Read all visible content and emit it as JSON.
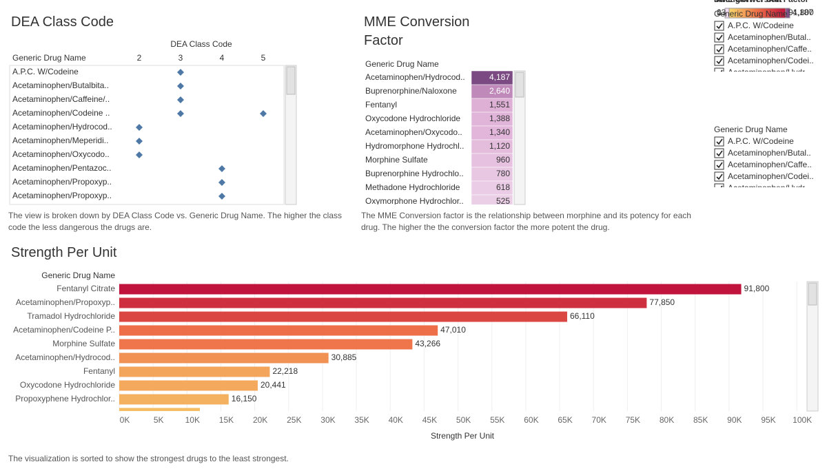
{
  "chart_data": [
    {
      "type": "dot",
      "title": "DEA Class Code",
      "xlabel": "DEA Class Code",
      "ylabel": "Generic Drug Name",
      "categories": [
        "A.P.C. W/Codeine",
        "Acetaminophen/Butalbita..",
        "Acetaminophen/Caffeine/..",
        "Acetaminophen/Codeine ..",
        "Acetaminophen/Hydrocod..",
        "Acetaminophen/Meperidi..",
        "Acetaminophen/Oxycodo..",
        "Acetaminophen/Pentazoc..",
        "Acetaminophen/Propoxyp..",
        "Acetaminophen/Propoxyp.."
      ],
      "values": [
        [
          3
        ],
        [
          3
        ],
        [
          3
        ],
        [
          3,
          5
        ],
        [
          2
        ],
        [
          2
        ],
        [
          2
        ],
        [
          4
        ],
        [
          4
        ],
        [
          4
        ]
      ],
      "xlim": [
        1.5,
        5.5
      ],
      "xticks": [
        2,
        3,
        4,
        5
      ],
      "color": "#4e79a7",
      "caption": "The view is broken down by DEA Class Code vs. Generic Drug Name. The higher the class code the less dangerous the drugs are."
    },
    {
      "type": "highlight_table",
      "title": "MME Conversion Factor",
      "ylabel": "Generic Drug Name",
      "categories": [
        "Acetaminophen/Hydrocod..",
        "Buprenorphine/Naloxone",
        "Fentanyl",
        "Oxycodone Hydrochloride",
        "Acetaminophen/Oxycodo..",
        "Hydromorphone Hydrochl..",
        "Morphine Sulfate",
        "Buprenorphine Hydrochlo..",
        "Methadone Hydrochloride",
        "Oxymorphone Hydrochlor.."
      ],
      "values": [
        4187,
        2640,
        1551,
        1388,
        1340,
        1120,
        960,
        780,
        618,
        525
      ],
      "value_labels": [
        "4,187",
        "2,640",
        "1,551",
        "1,388",
        "1,340",
        "1,120",
        "960",
        "780",
        "618",
        "525"
      ],
      "legend": {
        "title": "MME Conversion Factor",
        "min": 0,
        "max": 4187,
        "max_label": "4,187",
        "colors": [
          "#f2dff0",
          "#d79fcd",
          "#7b4a83"
        ]
      },
      "caption": "The MME Conversion factor is the relationship between morphine and its potency for each drug. The higher the the conversion factor the more potent the drug."
    },
    {
      "type": "bar",
      "orientation": "horizontal",
      "title": "Strength Per Unit",
      "ylabel": "Generic Drug Name",
      "xlabel": "Strength Per Unit",
      "categories": [
        "Fentanyl Citrate",
        "Acetaminophen/Propoxyp..",
        "Tramadol Hydrochloride",
        "Acetaminophen/Codeine P..",
        "Morphine Sulfate",
        "Acetaminophen/Hydrocod..",
        "Fentanyl",
        "Oxycodone Hydrochloride",
        "Propoxyphene Hydrochlor..",
        null
      ],
      "values": [
        91800,
        77850,
        66110,
        47010,
        43266,
        30885,
        22218,
        20441,
        16150,
        11900
      ],
      "value_labels": [
        "91,800",
        "77,850",
        "66,110",
        "47,010",
        "43,266",
        "30,885",
        "22,218",
        "20,441",
        "16,150",
        null
      ],
      "xlim": [
        0,
        101000
      ],
      "xticks": [
        {
          "value": 0,
          "label": "0K"
        },
        {
          "value": 5000,
          "label": "5K"
        },
        {
          "value": 10000,
          "label": "10K"
        },
        {
          "value": 15000,
          "label": "15K"
        },
        {
          "value": 20000,
          "label": "20K"
        },
        {
          "value": 25000,
          "label": "25K"
        },
        {
          "value": 30000,
          "label": "30K"
        },
        {
          "value": 35000,
          "label": "35K"
        },
        {
          "value": 40000,
          "label": "40K"
        },
        {
          "value": 45000,
          "label": "45K"
        },
        {
          "value": 50000,
          "label": "50K"
        },
        {
          "value": 55000,
          "label": "55K"
        },
        {
          "value": 60000,
          "label": "60K"
        },
        {
          "value": 65000,
          "label": "65K"
        },
        {
          "value": 70000,
          "label": "70K"
        },
        {
          "value": 75000,
          "label": "75K"
        },
        {
          "value": 80000,
          "label": "80K"
        },
        {
          "value": 85000,
          "label": "85K"
        },
        {
          "value": 90000,
          "label": "90K"
        },
        {
          "value": 95000,
          "label": "95K"
        },
        {
          "value": 100000,
          "label": "100K"
        }
      ],
      "grid": true,
      "legend": {
        "title": "Strength Per Unit",
        "min": 13,
        "max": 91800,
        "max_label": "91,800",
        "colors": [
          "#f8d66d",
          "#ee7048",
          "#c1143c"
        ]
      },
      "caption": "The visualization is sorted to show the strongest drugs to the least strongest."
    }
  ],
  "filters": [
    {
      "title": "Generic Drug Name",
      "items": [
        "A.P.C. W/Codeine",
        "Acetaminophen/Butal..",
        "Acetaminophen/Caffe..",
        "Acetaminophen/Codei..",
        "Acetaminophen/Hydr.."
      ]
    },
    {
      "title": "Generic Drug Name",
      "items": [
        "A.P.C. W/Codeine",
        "Acetaminophen/Butal..",
        "Acetaminophen/Caffe..",
        "Acetaminophen/Codei..",
        "Acetaminophen/Hydr.."
      ]
    }
  ]
}
